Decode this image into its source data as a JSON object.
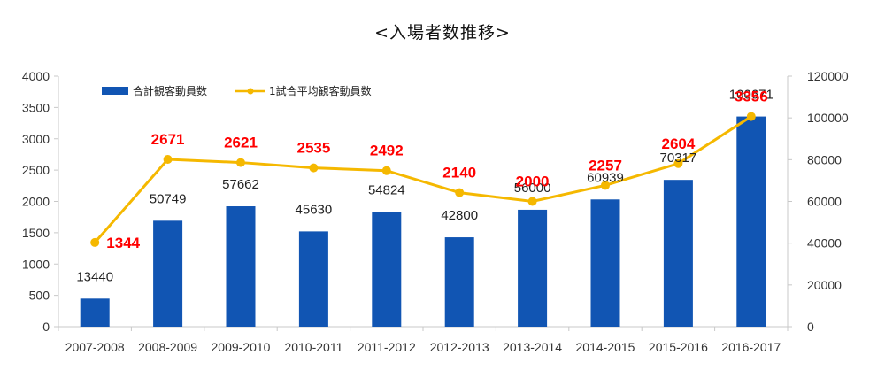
{
  "title": "<入場者数推移>",
  "colors": {
    "bar": "#1155b3",
    "line": "#f5b800",
    "line_label": "#ff0000",
    "axis": "#c8c8c8"
  },
  "chart_data": {
    "type": "bar",
    "categories": [
      "2007-2008",
      "2008-2009",
      "2009-2010",
      "2010-2011",
      "2011-2012",
      "2012-2013",
      "2013-2014",
      "2014-2015",
      "2015-2016",
      "2016-2017"
    ],
    "series": [
      {
        "name": "合計観客動員数",
        "type": "bar",
        "axis": "right",
        "values": [
          13440,
          50749,
          57662,
          45630,
          54824,
          42800,
          56000,
          60939,
          70317,
          100671
        ]
      },
      {
        "name": "1試合平均観客動員数",
        "type": "line",
        "axis": "left",
        "values": [
          1344,
          2671,
          2621,
          2535,
          2492,
          2140,
          2000,
          2257,
          2604,
          3356
        ]
      }
    ],
    "y_left": {
      "min": 0,
      "max": 4000,
      "ticks": [
        0,
        500,
        1000,
        1500,
        2000,
        2500,
        3000,
        3500,
        4000
      ]
    },
    "y_right": {
      "min": 0,
      "max": 120000,
      "ticks": [
        0,
        20000,
        40000,
        60000,
        80000,
        100000,
        120000
      ]
    },
    "grid": false,
    "legend_position": "top-left"
  }
}
